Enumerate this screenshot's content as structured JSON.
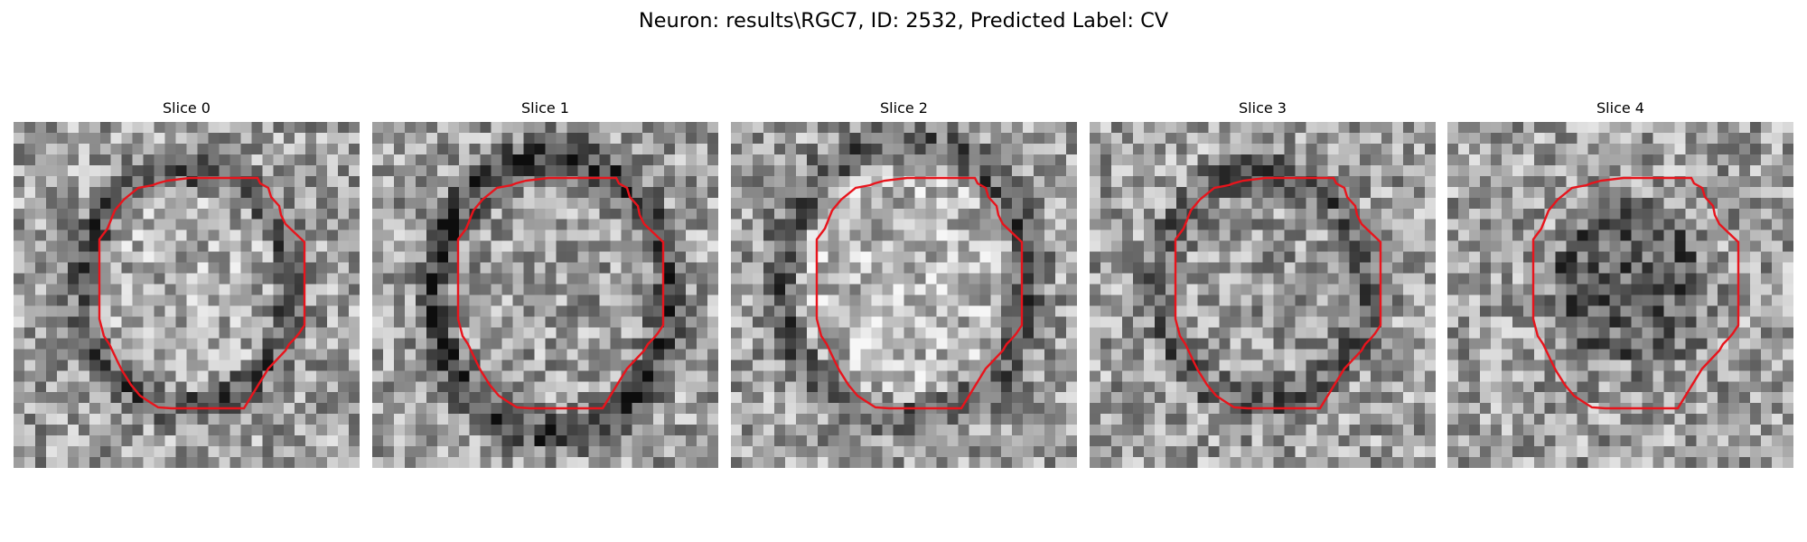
{
  "figure": {
    "title": "Neuron: results\\RGC7, ID: 2532, Predicted Label: CV",
    "colormap": "gray",
    "outline_color": "#e8141c",
    "grid_size": 32
  },
  "panels": [
    {
      "title": "Slice 0",
      "ring_strength": 0.55,
      "interior_brightness": 0.68
    },
    {
      "title": "Slice 1",
      "ring_strength": 0.7,
      "interior_brightness": 0.62
    },
    {
      "title": "Slice 2",
      "ring_strength": 0.5,
      "interior_brightness": 0.72
    },
    {
      "title": "Slice 3",
      "ring_strength": 0.5,
      "interior_brightness": 0.6
    },
    {
      "title": "Slice 4",
      "ring_strength": 0.2,
      "interior_brightness": 0.38
    }
  ]
}
